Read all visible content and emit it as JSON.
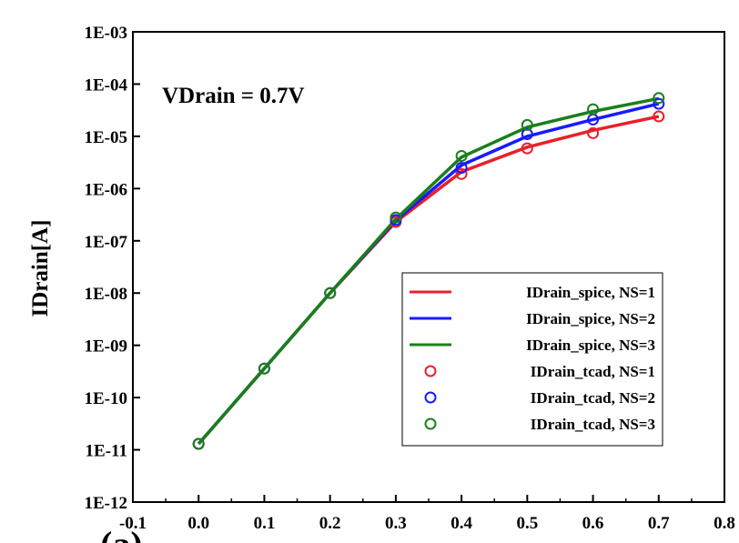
{
  "chart_data": {
    "type": "line",
    "title": "",
    "xlabel": "",
    "ylabel": "IDrain[A]",
    "yscale": "log",
    "xlim": [
      -0.1,
      0.8
    ],
    "ylim": [
      1e-12,
      0.001
    ],
    "x_ticks": [
      -0.1,
      0.0,
      0.1,
      0.2,
      0.3,
      0.4,
      0.5,
      0.6,
      0.7,
      0.8
    ],
    "x_tick_labels": [
      "-0.1",
      "0.0",
      "0.1",
      "0.2",
      "0.3",
      "0.4",
      "0.5",
      "0.6",
      "0.7",
      "0.8"
    ],
    "y_ticks": [
      0.001,
      0.0001,
      1e-05,
      1e-06,
      1e-07,
      1e-08,
      1e-09,
      1e-10,
      1e-11,
      1e-12
    ],
    "y_tick_labels": [
      "1E-03",
      "1E-04",
      "1E-05",
      "1E-06",
      "1E-07",
      "1E-08",
      "1E-09",
      "1E-10",
      "1E-11",
      "1E-12"
    ],
    "annotation": "VDrain = 0.7V",
    "panel_label": "(a)",
    "legend_position": "lower-right",
    "series": [
      {
        "name": "IDrain_spice, NS=1",
        "style": "line",
        "color": "#e8202a",
        "x": [
          0.0,
          0.1,
          0.2,
          0.3,
          0.4,
          0.5,
          0.6,
          0.7
        ],
        "values": [
          1.3e-11,
          3.6e-10,
          1e-08,
          2.3e-07,
          2.1e-06,
          6.2e-06,
          1.3e-05,
          2.4e-05
        ]
      },
      {
        "name": "IDrain_spice, NS=2",
        "style": "line",
        "color": "#1a1aff",
        "x": [
          0.0,
          0.1,
          0.2,
          0.3,
          0.4,
          0.5,
          0.6,
          0.7
        ],
        "values": [
          1.3e-11,
          3.6e-10,
          1e-08,
          2.45e-07,
          2.8e-06,
          1e-05,
          2.1e-05,
          4.2e-05
        ]
      },
      {
        "name": "IDrain_spice, NS=3",
        "style": "line",
        "color": "#1a7f1a",
        "x": [
          0.0,
          0.1,
          0.2,
          0.3,
          0.4,
          0.5,
          0.6,
          0.7
        ],
        "values": [
          1.3e-11,
          3.6e-10,
          1e-08,
          2.6e-07,
          4e-06,
          1.5e-05,
          3e-05,
          5.3e-05
        ]
      },
      {
        "name": "IDrain_tcad, NS=1",
        "style": "marker",
        "color": "#e8202a",
        "x": [
          0.0,
          0.1,
          0.2,
          0.3,
          0.4,
          0.5,
          0.6,
          0.7
        ],
        "values": [
          1.3e-11,
          3.6e-10,
          1e-08,
          2.3e-07,
          1.9e-06,
          5.9e-06,
          1.15e-05,
          2.4e-05
        ]
      },
      {
        "name": "IDrain_tcad, NS=2",
        "style": "marker",
        "color": "#1a1aff",
        "x": [
          0.0,
          0.1,
          0.2,
          0.3,
          0.4,
          0.5,
          0.6,
          0.7
        ],
        "values": [
          1.3e-11,
          3.6e-10,
          1e-08,
          2.5e-07,
          2.5e-06,
          1.1e-05,
          2.1e-05,
          4.2e-05
        ]
      },
      {
        "name": "IDrain_tcad, NS=3",
        "style": "marker",
        "color": "#1a7f1a",
        "x": [
          0.0,
          0.1,
          0.2,
          0.3,
          0.4,
          0.5,
          0.6,
          0.7
        ],
        "values": [
          1.3e-11,
          3.6e-10,
          1e-08,
          2.8e-07,
          4.2e-06,
          1.65e-05,
          3.3e-05,
          5.4e-05
        ]
      }
    ]
  }
}
